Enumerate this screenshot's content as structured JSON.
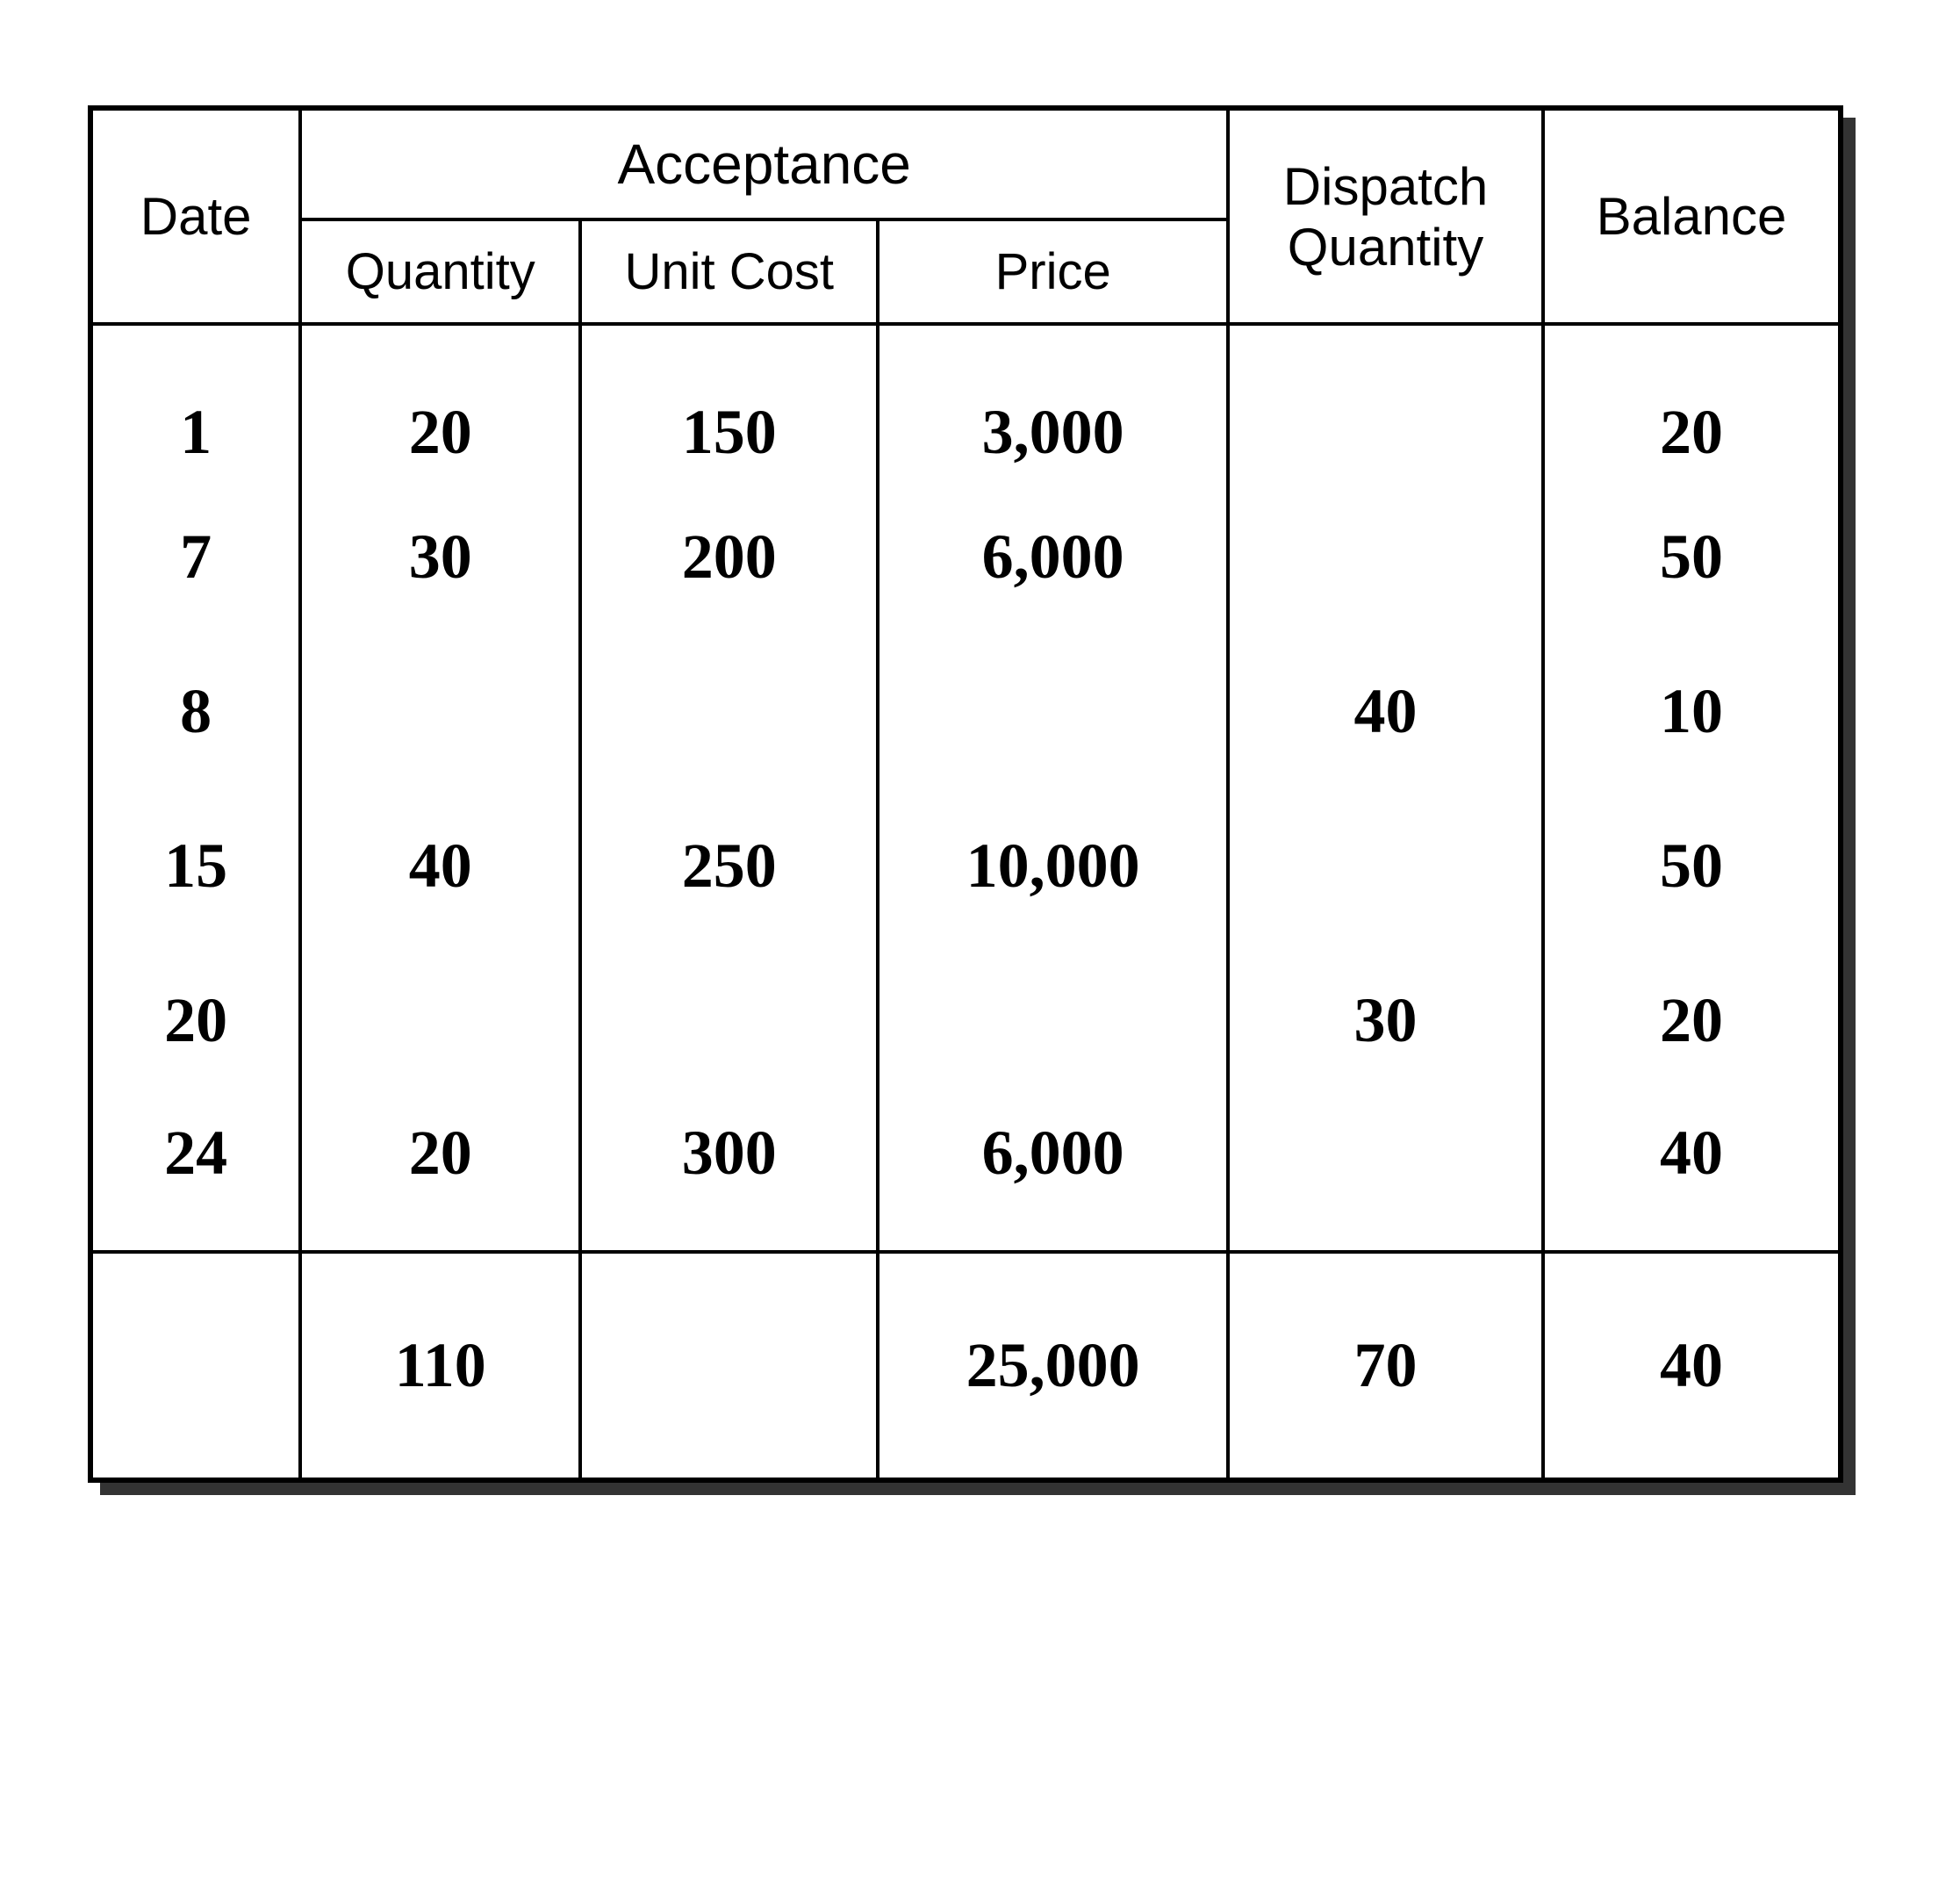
{
  "table": {
    "type": "table",
    "background_color": "#ffffff",
    "border_color": "#000000",
    "shadow_color": "#333333",
    "header_font_family": "Arial, Helvetica, sans-serif",
    "body_font_family": "Georgia, 'Times New Roman', serif",
    "header_fontsize": 58,
    "body_fontsize": 72,
    "border_width_outer": 6,
    "border_width_inner": 4,
    "headers": {
      "date": "Date",
      "acceptance_group": "Acceptance",
      "quantity": "Quantity",
      "unit_cost": "Unit Cost",
      "price": "Price",
      "dispatch_quantity": "Dispatch Quantity",
      "balance": "Balance"
    },
    "columns": [
      "date",
      "quantity",
      "unit_cost",
      "price",
      "dispatch_quantity",
      "balance"
    ],
    "column_widths_pct": [
      12,
      16,
      17,
      20,
      18,
      17
    ],
    "rows": [
      {
        "date": "1",
        "quantity": "20",
        "unit_cost": "150",
        "price": "3,000",
        "dispatch_quantity": "",
        "balance": "20"
      },
      {
        "date": "7",
        "quantity": "30",
        "unit_cost": "200",
        "price": "6,000",
        "dispatch_quantity": "",
        "balance": "50"
      },
      {
        "date": "8",
        "quantity": "",
        "unit_cost": "",
        "price": "",
        "dispatch_quantity": "40",
        "balance": "10"
      },
      {
        "date": "15",
        "quantity": "40",
        "unit_cost": "250",
        "price": "10,000",
        "dispatch_quantity": "",
        "balance": "50"
      },
      {
        "date": "20",
        "quantity": "",
        "unit_cost": "",
        "price": "",
        "dispatch_quantity": "30",
        "balance": "20"
      },
      {
        "date": "24",
        "quantity": "20",
        "unit_cost": "300",
        "price": "6,000",
        "dispatch_quantity": "",
        "balance": "40"
      }
    ],
    "totals": {
      "date": "",
      "quantity": "110",
      "unit_cost": "",
      "price": "25,000",
      "dispatch_quantity": "70",
      "balance": "40"
    }
  }
}
